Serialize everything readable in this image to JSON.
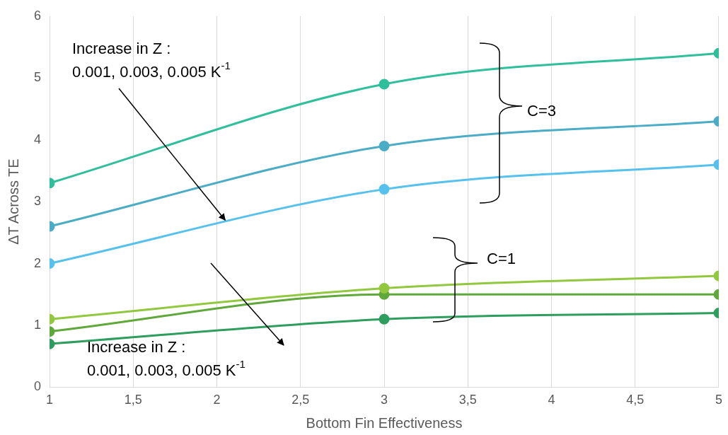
{
  "chart_data": {
    "type": "line",
    "xlabel": "Bottom Fin Effectiveness",
    "ylabel": "ΔT Across TE",
    "x": [
      1,
      3,
      5
    ],
    "series": [
      {
        "color": "#2fbf9a",
        "values": [
          3.3,
          4.9,
          5.4
        ]
      },
      {
        "color": "#4bacc6",
        "values": [
          2.6,
          3.9,
          4.3
        ]
      },
      {
        "color": "#56c1ec",
        "values": [
          2.0,
          3.2,
          3.6
        ]
      },
      {
        "color": "#92c83e",
        "values": [
          1.1,
          1.6,
          1.8
        ]
      },
      {
        "color": "#5fa83a",
        "values": [
          0.9,
          1.5,
          1.5
        ]
      },
      {
        "color": "#2e9e5e",
        "values": [
          0.7,
          1.1,
          1.2
        ]
      }
    ],
    "xlim": [
      1,
      5
    ],
    "xticks": [
      1,
      {
        "value": 1.5,
        "label": "1,5"
      },
      2,
      {
        "value": 2.5,
        "label": "2,5"
      },
      3,
      {
        "value": 3.5,
        "label": "3,5"
      },
      4,
      {
        "value": 4.5,
        "label": "4,5"
      },
      5
    ],
    "ylim": [
      0,
      6
    ],
    "yticks": [
      0,
      1,
      2,
      3,
      4,
      5,
      6
    ],
    "grid": "x",
    "legend": false,
    "marker": "circle",
    "line_style": "solid",
    "annotations": [
      {
        "text": "Increase in Z :\n0.001, 0.003, 0.005 K$^{-1}$",
        "x": 2.05,
        "y": 2.7
      },
      "C=3",
      "C=1",
      "Increase in Z :\n0.001, 0.003, 0.005 K$^{-1}$"
    ]
  }
}
